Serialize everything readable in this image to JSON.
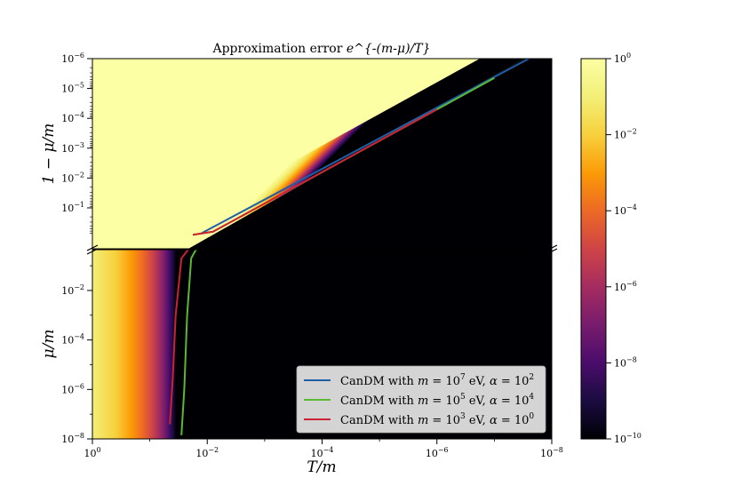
{
  "chart_data": {
    "type": "heatmap",
    "title_prefix": "Approximation error ",
    "title_formula": "e^{-(m-μ)/T}",
    "xlabel": "T/m",
    "x_axis": {
      "scale": "log",
      "direction": "decreasing",
      "ticks": [
        {
          "mant": "10",
          "exp": "0"
        },
        {
          "mant": "10",
          "exp": "−2"
        },
        {
          "mant": "10",
          "exp": "−4"
        },
        {
          "mant": "10",
          "exp": "−6"
        },
        {
          "mant": "10",
          "exp": "−8"
        }
      ]
    },
    "upper_panel": {
      "ylabel": "1 − μ/m",
      "scale": "log",
      "ticks": [
        {
          "mant": "10",
          "exp": "−6"
        },
        {
          "mant": "10",
          "exp": "−5"
        },
        {
          "mant": "10",
          "exp": "−4"
        },
        {
          "mant": "10",
          "exp": "−3"
        },
        {
          "mant": "10",
          "exp": "−2"
        },
        {
          "mant": "10",
          "exp": "−1"
        }
      ]
    },
    "lower_panel": {
      "ylabel": "μ/m",
      "scale": "log",
      "ticks": [
        {
          "mant": "10",
          "exp": "−2"
        },
        {
          "mant": "10",
          "exp": "−4"
        },
        {
          "mant": "10",
          "exp": "−6"
        },
        {
          "mant": "10",
          "exp": "−8"
        }
      ]
    },
    "colorbar": {
      "scale": "log",
      "colormap": "inferno",
      "range": [
        1e-10,
        1
      ],
      "ticks": [
        {
          "mant": "10",
          "exp": "0"
        },
        {
          "mant": "10",
          "exp": "−2"
        },
        {
          "mant": "10",
          "exp": "−4"
        },
        {
          "mant": "10",
          "exp": "−6"
        },
        {
          "mant": "10",
          "exp": "−8"
        },
        {
          "mant": "10",
          "exp": "−10"
        }
      ]
    },
    "legend_position": "lower-right",
    "series": [
      {
        "name": "CanDM with m = 10^7 eV, α = 10^2",
        "label_text": "CanDM with ",
        "m_exp": "7",
        "alpha_exp": "2",
        "color": "#1f5fa8",
        "upper_points": [
          [
            -1.9,
            -0.15
          ],
          [
            -7.6,
            -6.0
          ]
        ],
        "lower_points": []
      },
      {
        "name": "CanDM with m = 10^5 eV, α = 10^4",
        "label_text": "CanDM with ",
        "m_exp": "5",
        "alpha_exp": "4",
        "color": "#5ab833",
        "upper_points": [
          [
            -1.75,
            -0.1
          ],
          [
            -1.85,
            -0.13
          ],
          [
            -2.1,
            -0.2
          ],
          [
            -7.0,
            -5.35
          ]
        ],
        "lower_points": [
          [
            -1.55,
            -7.85
          ],
          [
            -1.6,
            -6.0
          ],
          [
            -1.65,
            -3.0
          ],
          [
            -1.72,
            -0.7
          ],
          [
            -1.85,
            -0.15
          ]
        ]
      },
      {
        "name": "CanDM with m = 10^3 eV, α = 10^0",
        "label_text": "CanDM with ",
        "m_exp": "3",
        "alpha_exp": "0",
        "color": "#cc2233",
        "upper_points": [
          [
            -1.75,
            -0.1
          ],
          [
            -2.1,
            -0.2
          ],
          [
            -6.0,
            -4.3
          ]
        ],
        "lower_points": [
          [
            -1.35,
            -7.4
          ],
          [
            -1.4,
            -5.5
          ],
          [
            -1.45,
            -3.0
          ],
          [
            -1.55,
            -0.7
          ],
          [
            -1.75,
            -0.1
          ]
        ]
      }
    ],
    "legend_italic_m": "m",
    "legend_eq": " = 10",
    "legend_ev": " eV, ",
    "legend_alpha": "α",
    "legend_eq2": " = 10"
  }
}
